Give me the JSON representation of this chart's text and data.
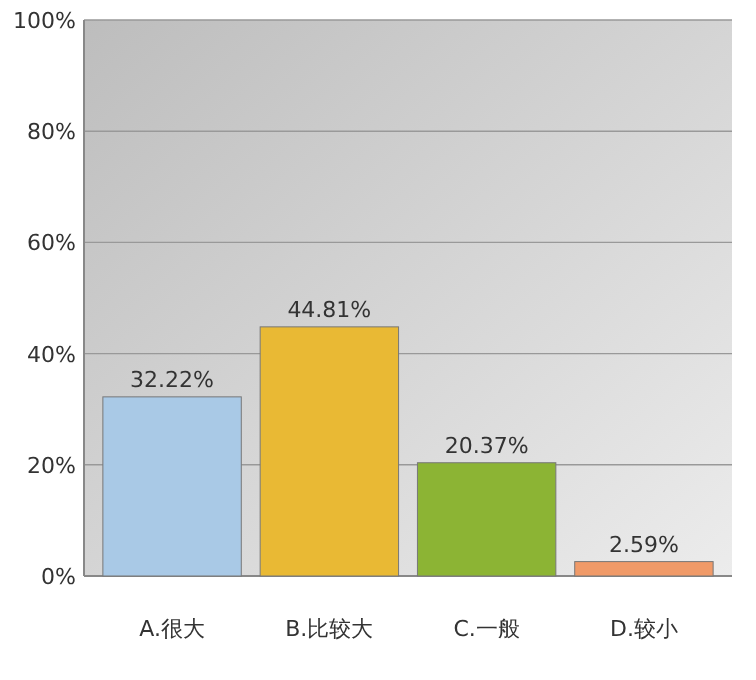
{
  "chart_data": {
    "type": "bar",
    "categories": [
      "A.很大",
      "B.比较大",
      "C.一般",
      "D.较小"
    ],
    "values": [
      32.22,
      44.81,
      20.37,
      2.59
    ],
    "colors": [
      "#a9c9e6",
      "#e9b934",
      "#8cb434",
      "#f09a68"
    ],
    "value_labels": [
      "32.22%",
      "44.81%",
      "20.37%",
      "2.59%"
    ],
    "ylim": [
      0,
      100
    ],
    "yticks": [
      {
        "value": 0,
        "label": "0%"
      },
      {
        "value": 20,
        "label": "20%"
      },
      {
        "value": 40,
        "label": "40%"
      },
      {
        "value": 60,
        "label": "60%"
      },
      {
        "value": 80,
        "label": "80%"
      },
      {
        "value": 100,
        "label": "100%"
      }
    ],
    "grid": "y"
  }
}
